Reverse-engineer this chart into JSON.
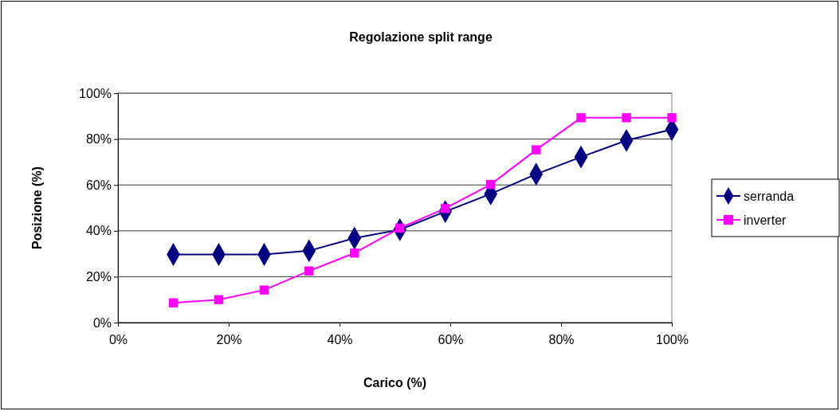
{
  "chart_data": {
    "type": "line",
    "title": "Regolazione split range",
    "xlabel": "Carico (%)",
    "ylabel": "Posizione (%)",
    "x": [
      10,
      18.2,
      26.4,
      34.5,
      42.7,
      50.9,
      59.1,
      67.3,
      75.5,
      83.6,
      91.8,
      100
    ],
    "series": [
      {
        "name": "serranda",
        "color": "#000080",
        "marker": "diamond",
        "values": [
          29.7,
          29.7,
          29.7,
          31.3,
          36.8,
          40.5,
          48.4,
          56.1,
          64.7,
          72.2,
          79.4,
          84.2
        ]
      },
      {
        "name": "inverter",
        "color": "#ff00ff",
        "marker": "square",
        "values": [
          8.6,
          10.0,
          14.2,
          22.5,
          30.3,
          41.2,
          49.8,
          60.2,
          75.3,
          89.3,
          89.3,
          89.3
        ]
      }
    ],
    "xlim": [
      0,
      100
    ],
    "xticks": [
      {
        "value": 0,
        "label": "0%"
      },
      {
        "value": 20,
        "label": "20%"
      },
      {
        "value": 40,
        "label": "40%"
      },
      {
        "value": 60,
        "label": "60%"
      },
      {
        "value": 80,
        "label": "80%"
      },
      {
        "value": 100,
        "label": "100%"
      }
    ],
    "ylim": [
      0,
      100
    ],
    "yticks": [
      {
        "value": 0,
        "label": "0%"
      },
      {
        "value": 20,
        "label": "20%"
      },
      {
        "value": 40,
        "label": "40%"
      },
      {
        "value": 60,
        "label": "60%"
      },
      {
        "value": 80,
        "label": "80%"
      },
      {
        "value": 100,
        "label": "100%"
      }
    ],
    "grid": "y",
    "legend": "right",
    "line_style": "solid"
  }
}
